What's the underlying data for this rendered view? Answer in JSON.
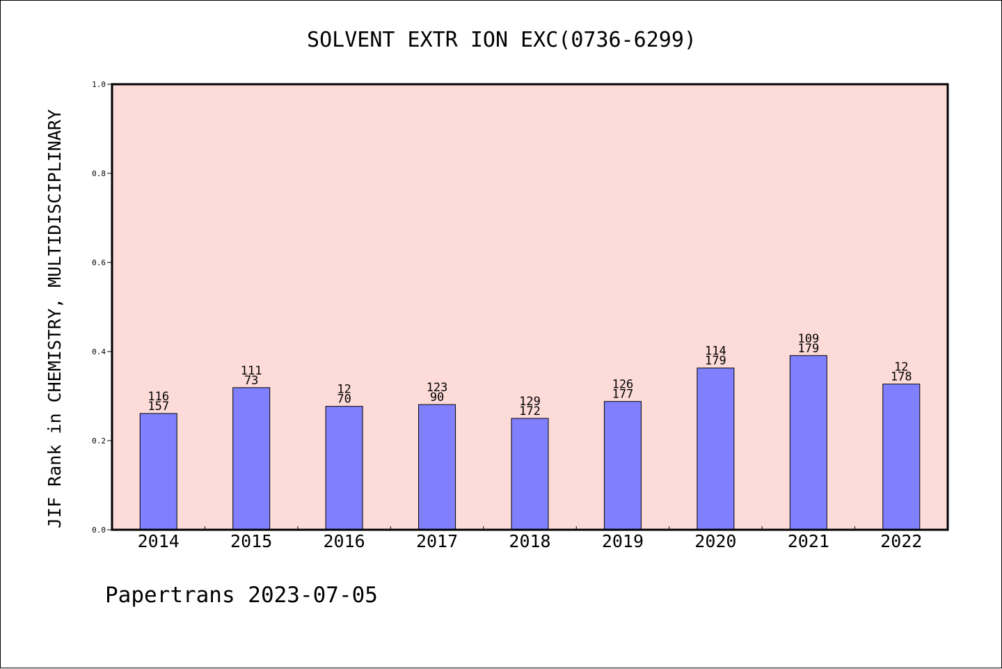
{
  "chart_data": {
    "type": "bar",
    "title": "SOLVENT EXTR ION EXC(0736-6299)",
    "xlabel": "",
    "ylabel": "JIF Rank in CHEMISTRY, MULTIDISCIPLINARY",
    "ylim": [
      0,
      1.0
    ],
    "yticks": [
      "0.0",
      "0.2",
      "0.4",
      "0.6",
      "0.8",
      "1.0"
    ],
    "categories": [
      "2014",
      "2015",
      "2016",
      "2017",
      "2018",
      "2019",
      "2020",
      "2021",
      "2022"
    ],
    "values": [
      0.261,
      0.319,
      0.277,
      0.281,
      0.25,
      0.288,
      0.363,
      0.391,
      0.327
    ],
    "rank_labels": [
      "116",
      "111",
      "12",
      "123",
      "129",
      "126",
      "114",
      "109",
      "12"
    ],
    "total_labels": [
      "157",
      "73",
      "70",
      "90",
      "172",
      "177",
      "179",
      "179",
      "178"
    ],
    "grid": false,
    "legend": "none",
    "colors": {
      "plot_background": "#fddbd8",
      "bar_fill": "#8080ff",
      "bar_stroke": "#000000",
      "axis": "#000000"
    }
  },
  "footer": {
    "text": "Papertrans 2023-07-05"
  }
}
